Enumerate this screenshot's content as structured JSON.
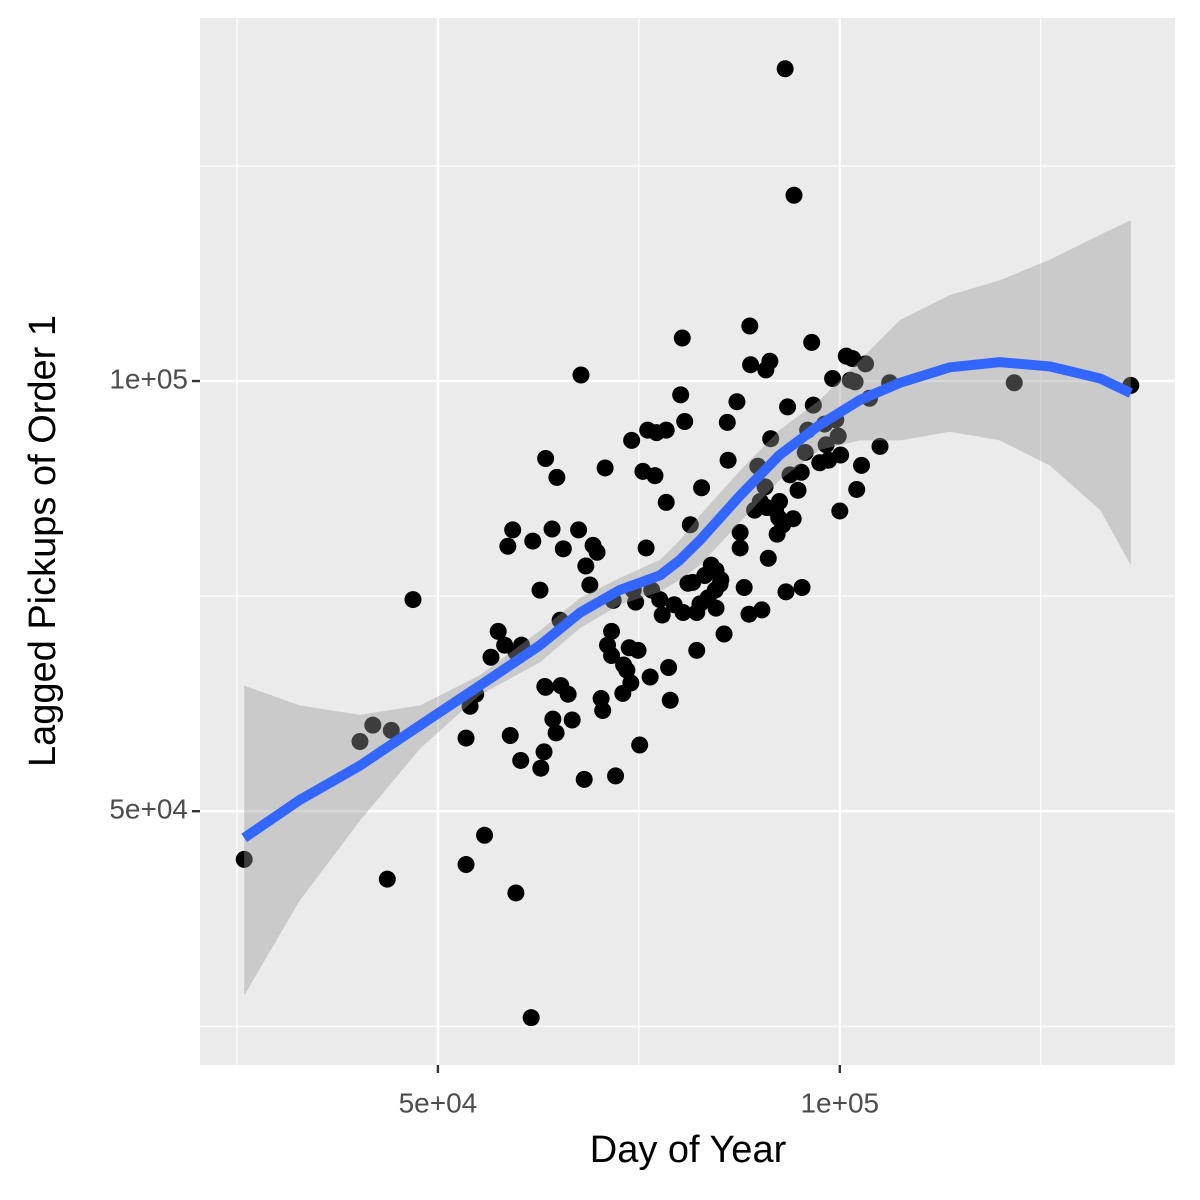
{
  "chart_data": {
    "type": "scatter",
    "x_label": "Day of Year",
    "y_label": "Lagged Pickups of Order 1",
    "xlim": [
      20400,
      141700
    ],
    "ylim": [
      20500,
      142200
    ],
    "xticks": [
      {
        "value": 50000,
        "label": "5e+04"
      },
      {
        "value": 100000,
        "label": "1e+05"
      }
    ],
    "yticks": [
      {
        "value": 50000,
        "label": "5e+04"
      },
      {
        "value": 100000,
        "label": "1e+05"
      }
    ],
    "xminor": [
      25000,
      75000,
      125000
    ],
    "yminor": [
      25000,
      75000,
      125000
    ],
    "grid": true,
    "color": "#000000",
    "x": [
      25900,
      40300,
      41900,
      44200,
      43700,
      46900,
      53500,
      53500,
      54700,
      55800,
      54000,
      56600,
      57500,
      58300,
      59700,
      60400,
      59000,
      60300,
      59700,
      61600,
      58700,
      59300,
      61800,
      62700,
      63400,
      64200,
      64800,
      65600,
      62800,
      63200,
      63300,
      64300,
      64700,
      65200,
      63400,
      65300,
      66200,
      66700,
      67800,
      67500,
      68200,
      68400,
      68900,
      69300,
      69800,
      70300,
      70800,
      70500,
      71100,
      71600,
      71600,
      71800,
      72100,
      73000,
      73100,
      73500,
      73800,
      74000,
      74300,
      74100,
      74600,
      74900,
      75100,
      75500,
      75900,
      76100,
      76400,
      76600,
      77000,
      77200,
      77600,
      77900,
      78400,
      78400,
      78700,
      78900,
      79400,
      80200,
      80400,
      80500,
      80700,
      81100,
      81400,
      81700,
      82200,
      82200,
      82800,
      82600,
      83200,
      83600,
      84000,
      84500,
      84600,
      85100,
      84600,
      85200,
      85600,
      86000,
      86100,
      87200,
      87600,
      87600,
      88100,
      88700,
      88800,
      88900,
      89400,
      89800,
      90100,
      90300,
      90800,
      90900,
      91100,
      91300,
      91400,
      92000,
      92200,
      92400,
      93200,
      93500,
      93300,
      93800,
      94200,
      94300,
      94800,
      95200,
      95300,
      95700,
      96500,
      97500,
      98100,
      98600,
      99100,
      99800,
      100000,
      100100,
      100800,
      101300,
      101600,
      101900,
      102100,
      102700,
      103200,
      103700,
      105000,
      106200,
      121700,
      136200,
      98300,
      99500,
      96000,
      96700,
      92900,
      92500,
      90700
    ],
    "y": [
      44400,
      58100,
      60000,
      59400,
      42100,
      74600,
      43800,
      58500,
      63600,
      47200,
      62200,
      67900,
      70900,
      69300,
      68500,
      69300,
      58800,
      55900,
      40500,
      26000,
      80800,
      82700,
      81400,
      75700,
      91000,
      82800,
      88800,
      80500,
      55000,
      56900,
      64500,
      60700,
      59100,
      72200,
      64400,
      64600,
      63600,
      60600,
      100700,
      82700,
      53700,
      78500,
      76300,
      80900,
      80100,
      63100,
      89900,
      61700,
      69300,
      70900,
      68100,
      74500,
      54100,
      63700,
      67000,
      66400,
      69000,
      64900,
      75700,
      93100,
      74300,
      68700,
      57700,
      89500,
      80600,
      94300,
      65600,
      75700,
      89000,
      94000,
      74600,
      72800,
      85900,
      94300,
      66700,
      62900,
      74000,
      98400,
      105000,
      73100,
      95300,
      76500,
      83300,
      76600,
      73100,
      68700,
      87600,
      74100,
      77400,
      74800,
      78600,
      75700,
      73600,
      76400,
      78000,
      76900,
      70600,
      95200,
      90800,
      97600,
      80600,
      82400,
      76000,
      72900,
      106400,
      101900,
      85000,
      90100,
      86000,
      73400,
      101300,
      85300,
      79400,
      102300,
      93300,
      85000,
      82200,
      84100,
      136300,
      97000,
      75500,
      89100,
      84000,
      121600,
      87300,
      89400,
      76000,
      91700,
      104500,
      90500,
      95000,
      90800,
      100300,
      93600,
      84900,
      91400,
      102900,
      100100,
      102600,
      99900,
      87400,
      90200,
      102000,
      98000,
      92400,
      99800,
      99800,
      99500,
      92600,
      95500,
      94300,
      97200,
      83300,
      86000,
      87700
    ],
    "smooth": {
      "color": "#3366ff",
      "band_color": "#999999",
      "x": [
        25900,
        32800,
        40300,
        47800,
        55200,
        62700,
        67700,
        72600,
        77600,
        80100,
        82600,
        87600,
        92500,
        97500,
        102500,
        107500,
        113700,
        119900,
        126100,
        132400,
        136200
      ],
      "y": [
        46900,
        51300,
        55300,
        60000,
        64600,
        69300,
        73100,
        75700,
        77400,
        79200,
        81500,
        86700,
        91400,
        94900,
        97800,
        99800,
        101600,
        102200,
        101700,
        100300,
        98600
      ],
      "ymin": [
        28600,
        39600,
        48900,
        57300,
        63500,
        67300,
        71300,
        74000,
        75500,
        76900,
        78600,
        83600,
        88500,
        92000,
        93100,
        93100,
        94100,
        93100,
        90200,
        85000,
        78600
      ],
      "ymax": [
        64600,
        62300,
        61200,
        62300,
        65800,
        71000,
        74800,
        77100,
        79200,
        81500,
        84400,
        89600,
        94300,
        97800,
        102400,
        107100,
        110000,
        111700,
        114100,
        117000,
        118700
      ]
    }
  }
}
